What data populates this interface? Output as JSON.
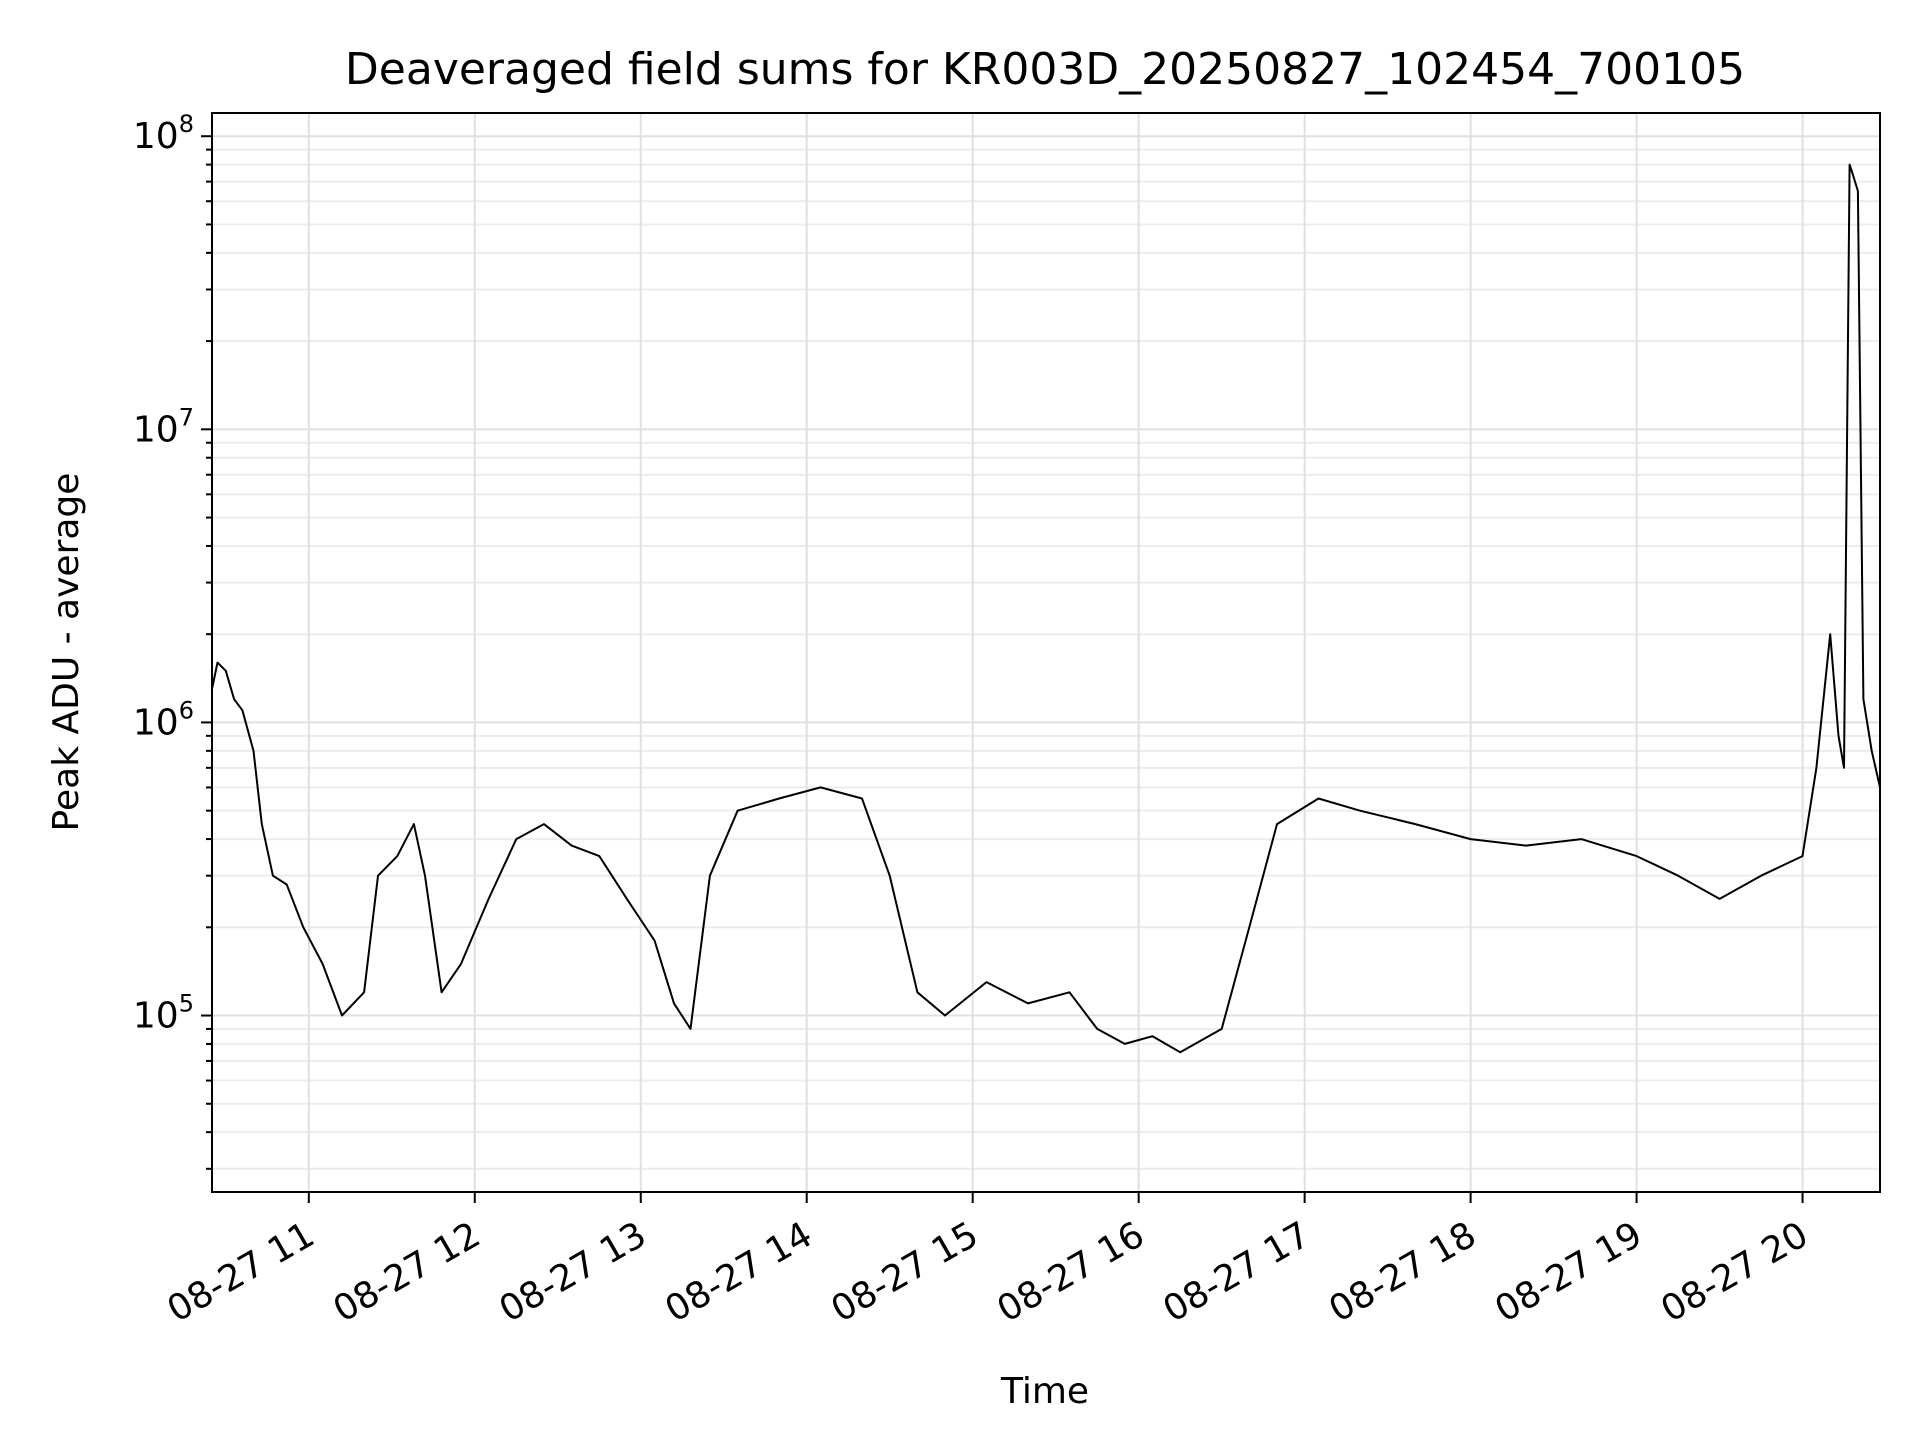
{
  "chart_data": {
    "type": "line",
    "title": "Deaveraged field sums for KR003D_20250827_102454_700105",
    "xlabel": "Time",
    "ylabel": "Peak ADU - average",
    "yscale": "log",
    "ylim": [
      25000,
      120000000
    ],
    "xlim": [
      "2025-08-27 10:25",
      "2025-08-27 20:28"
    ],
    "grid": "on (major and minor)",
    "line_color": "#000000",
    "x_ticks": [
      {
        "value": "2025-08-27 11:00",
        "label": "08-27 11"
      },
      {
        "value": "2025-08-27 12:00",
        "label": "08-27 12"
      },
      {
        "value": "2025-08-27 13:00",
        "label": "08-27 13"
      },
      {
        "value": "2025-08-27 14:00",
        "label": "08-27 14"
      },
      {
        "value": "2025-08-27 15:00",
        "label": "08-27 15"
      },
      {
        "value": "2025-08-27 16:00",
        "label": "08-27 16"
      },
      {
        "value": "2025-08-27 17:00",
        "label": "08-27 17"
      },
      {
        "value": "2025-08-27 18:00",
        "label": "08-27 18"
      },
      {
        "value": "2025-08-27 19:00",
        "label": "08-27 19"
      },
      {
        "value": "2025-08-27 20:00",
        "label": "08-27 20"
      }
    ],
    "y_ticks": [
      {
        "value": 100000,
        "base": "10",
        "exp": "5"
      },
      {
        "value": 1000000,
        "base": "10",
        "exp": "6"
      },
      {
        "value": 10000000,
        "base": "10",
        "exp": "7"
      },
      {
        "value": 100000000,
        "base": "10",
        "exp": "8"
      }
    ],
    "series": [
      {
        "points": [
          [
            "2025-08-27 10:25",
            1300000
          ],
          [
            "2025-08-27 10:27",
            1600000
          ],
          [
            "2025-08-27 10:30",
            1500000
          ],
          [
            "2025-08-27 10:33",
            1200000
          ],
          [
            "2025-08-27 10:36",
            1100000
          ],
          [
            "2025-08-27 10:40",
            800000
          ],
          [
            "2025-08-27 10:43",
            450000
          ],
          [
            "2025-08-27 10:47",
            300000
          ],
          [
            "2025-08-27 10:52",
            280000
          ],
          [
            "2025-08-27 10:58",
            200000
          ],
          [
            "2025-08-27 11:05",
            150000
          ],
          [
            "2025-08-27 11:12",
            100000
          ],
          [
            "2025-08-27 11:20",
            120000
          ],
          [
            "2025-08-27 11:25",
            300000
          ],
          [
            "2025-08-27 11:32",
            350000
          ],
          [
            "2025-08-27 11:38",
            450000
          ],
          [
            "2025-08-27 11:42",
            300000
          ],
          [
            "2025-08-27 11:48",
            120000
          ],
          [
            "2025-08-27 11:55",
            150000
          ],
          [
            "2025-08-27 12:05",
            250000
          ],
          [
            "2025-08-27 12:15",
            400000
          ],
          [
            "2025-08-27 12:25",
            450000
          ],
          [
            "2025-08-27 12:35",
            380000
          ],
          [
            "2025-08-27 12:45",
            350000
          ],
          [
            "2025-08-27 12:55",
            250000
          ],
          [
            "2025-08-27 13:05",
            180000
          ],
          [
            "2025-08-27 13:12",
            110000
          ],
          [
            "2025-08-27 13:18",
            90000
          ],
          [
            "2025-08-27 13:25",
            300000
          ],
          [
            "2025-08-27 13:35",
            500000
          ],
          [
            "2025-08-27 13:50",
            550000
          ],
          [
            "2025-08-27 14:05",
            600000
          ],
          [
            "2025-08-27 14:20",
            550000
          ],
          [
            "2025-08-27 14:30",
            300000
          ],
          [
            "2025-08-27 14:40",
            120000
          ],
          [
            "2025-08-27 14:50",
            100000
          ],
          [
            "2025-08-27 15:05",
            130000
          ],
          [
            "2025-08-27 15:20",
            110000
          ],
          [
            "2025-08-27 15:35",
            120000
          ],
          [
            "2025-08-27 15:45",
            90000
          ],
          [
            "2025-08-27 15:55",
            80000
          ],
          [
            "2025-08-27 16:05",
            85000
          ],
          [
            "2025-08-27 16:15",
            75000
          ],
          [
            "2025-08-27 16:30",
            90000
          ],
          [
            "2025-08-27 16:40",
            200000
          ],
          [
            "2025-08-27 16:50",
            450000
          ],
          [
            "2025-08-27 17:05",
            550000
          ],
          [
            "2025-08-27 17:20",
            500000
          ],
          [
            "2025-08-27 17:40",
            450000
          ],
          [
            "2025-08-27 18:00",
            400000
          ],
          [
            "2025-08-27 18:20",
            380000
          ],
          [
            "2025-08-27 18:40",
            400000
          ],
          [
            "2025-08-27 19:00",
            350000
          ],
          [
            "2025-08-27 19:15",
            300000
          ],
          [
            "2025-08-27 19:30",
            250000
          ],
          [
            "2025-08-27 19:45",
            300000
          ],
          [
            "2025-08-27 20:00",
            350000
          ],
          [
            "2025-08-27 20:05",
            700000
          ],
          [
            "2025-08-27 20:10",
            2000000
          ],
          [
            "2025-08-27 20:13",
            900000
          ],
          [
            "2025-08-27 20:15",
            700000
          ],
          [
            "2025-08-27 20:17",
            80000000
          ],
          [
            "2025-08-27 20:18",
            75000000
          ],
          [
            "2025-08-27 20:20",
            65000000
          ],
          [
            "2025-08-27 20:22",
            1200000
          ],
          [
            "2025-08-27 20:25",
            800000
          ],
          [
            "2025-08-27 20:28",
            600000
          ]
        ]
      }
    ]
  }
}
